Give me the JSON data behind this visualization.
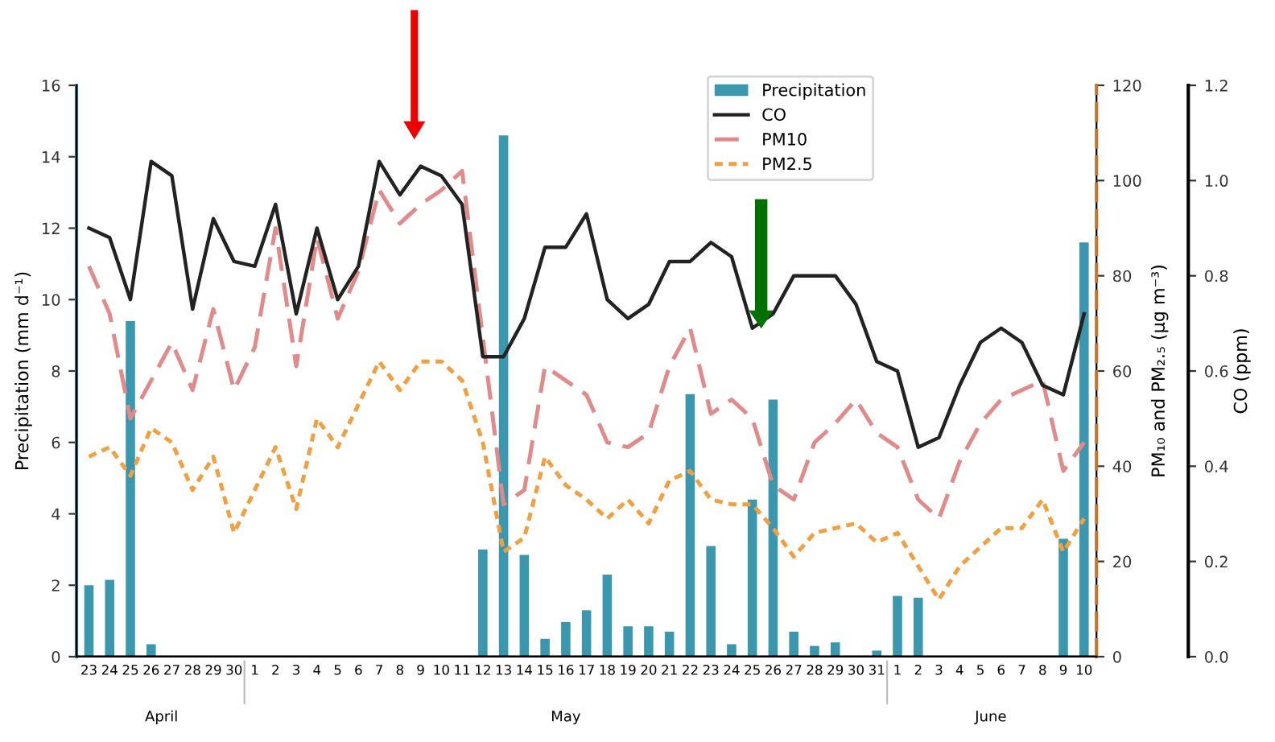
{
  "chart_data": {
    "type": "bar",
    "categories": [
      "23",
      "24",
      "25",
      "26",
      "27",
      "28",
      "29",
      "30",
      "1",
      "2",
      "3",
      "4",
      "5",
      "6",
      "7",
      "8",
      "9",
      "10",
      "11",
      "12",
      "13",
      "14",
      "15",
      "16",
      "17",
      "18",
      "19",
      "20",
      "21",
      "22",
      "23",
      "24",
      "25",
      "26",
      "27",
      "28",
      "29",
      "30",
      "31",
      "1",
      "2",
      "3",
      "4",
      "5",
      "6",
      "7",
      "8",
      "9",
      "10"
    ],
    "ylabel": "Precipitation (mm d⁻¹)",
    "y2label": "PM₁₀ and PM₂.₅ (µg m⁻³)",
    "y3label": "CO (ppm)",
    "ylim": [
      0,
      16
    ],
    "yticks": [
      0,
      2,
      4,
      6,
      8,
      10,
      12,
      14,
      16
    ],
    "y2lim": [
      0,
      120
    ],
    "y2ticks": [
      0,
      20,
      40,
      60,
      80,
      100,
      120
    ],
    "y3lim": [
      0,
      1.2
    ],
    "y3ticks": [
      {
        "value": 0,
        "label": "0.0"
      },
      {
        "value": 0.2,
        "label": "0.2"
      },
      {
        "value": 0.4,
        "label": "0.4"
      },
      {
        "value": 0.6,
        "label": "0.6"
      },
      {
        "value": 0.8,
        "label": "0.8"
      },
      {
        "value": 1.0,
        "label": "1.0"
      },
      {
        "value": 1.2,
        "label": "1.2"
      }
    ],
    "grid": false,
    "legend": "top",
    "annotations": [
      "April",
      "May",
      "June"
    ],
    "series": [
      {
        "name": "Precipitation",
        "color": "#3a97ad",
        "values": [
          2.0,
          2.15,
          9.4,
          0.35,
          0,
          0,
          0,
          0,
          0,
          0,
          0,
          0,
          0,
          0,
          0,
          0,
          0,
          0,
          0,
          3.0,
          14.6,
          2.85,
          0.5,
          0.97,
          1.3,
          2.3,
          0.85,
          0.85,
          0.7,
          7.35,
          3.1,
          0.35,
          4.4,
          7.2,
          0.7,
          0.3,
          0.4,
          0,
          0.17,
          1.7,
          1.65,
          0,
          0,
          0,
          0,
          0,
          0,
          3.3,
          11.6
        ]
      },
      {
        "name": "CO",
        "type": "line",
        "axis": "y3",
        "color": "#222222",
        "line_style": "solid",
        "values": [
          0.9,
          0.88,
          0.75,
          1.04,
          1.01,
          0.73,
          0.92,
          0.83,
          0.82,
          0.95,
          0.72,
          0.9,
          0.75,
          0.82,
          1.04,
          0.97,
          1.03,
          1.01,
          0.95,
          0.63,
          0.63,
          0.71,
          0.86,
          0.86,
          0.93,
          0.75,
          0.71,
          0.74,
          0.83,
          0.83,
          0.87,
          0.84,
          0.69,
          0.72,
          0.8,
          0.8,
          0.8,
          0.74,
          0.62,
          0.6,
          0.44,
          0.46,
          0.57,
          0.66,
          0.69,
          0.66,
          0.57,
          0.55,
          0.72
        ]
      },
      {
        "name": "PM10",
        "type": "line",
        "axis": "y2",
        "color": "#e08a8a",
        "line_style": "dashed",
        "values": [
          82,
          72,
          50,
          58,
          66,
          56,
          73,
          56,
          65,
          90,
          61,
          88,
          71,
          81,
          98,
          91,
          95,
          98,
          102,
          67,
          32,
          35,
          61,
          58,
          55,
          45,
          44,
          47,
          61,
          69,
          51,
          54,
          50,
          36,
          33,
          45,
          49,
          54,
          47,
          44,
          33,
          29,
          41,
          49,
          54,
          56,
          58,
          39,
          45
        ]
      },
      {
        "name": "PM2.5",
        "type": "line",
        "axis": "y2",
        "color": "#f0a040",
        "line_style": "dotted",
        "values": [
          42,
          44,
          38,
          48,
          45,
          35,
          42,
          26,
          35,
          44,
          31,
          50,
          44,
          53,
          62,
          56,
          62,
          62,
          58,
          45,
          22,
          25,
          42,
          36,
          33,
          29,
          33,
          28,
          37,
          39,
          33,
          32,
          32,
          27,
          21,
          26,
          27,
          28,
          24,
          26,
          19,
          12,
          19,
          23,
          27,
          27,
          33,
          22,
          29
        ]
      }
    ]
  }
}
